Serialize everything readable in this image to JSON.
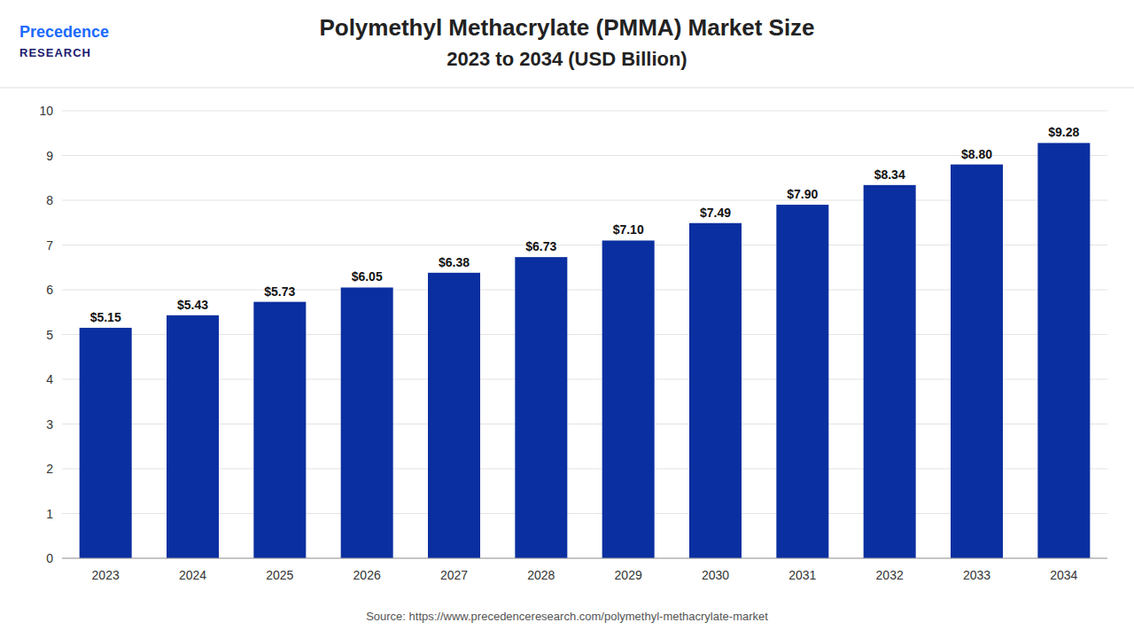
{
  "chart_data": {
    "type": "bar",
    "title": "Polymethyl Methacrylate (PMMA) Market Size",
    "subtitle": "2023 to 2034 (USD Billion)",
    "categories": [
      "2023",
      "2024",
      "2025",
      "2026",
      "2027",
      "2028",
      "2029",
      "2030",
      "2031",
      "2032",
      "2033",
      "2034"
    ],
    "values": [
      5.15,
      5.43,
      5.73,
      6.05,
      6.38,
      6.73,
      7.1,
      7.49,
      7.9,
      8.34,
      8.8,
      9.28
    ],
    "value_labels": [
      "$5.15",
      "$5.43",
      "$5.73",
      "$6.05",
      "$6.38",
      "$6.73",
      "$7.10",
      "$7.49",
      "$7.90",
      "$8.34",
      "$8.80",
      "$9.28"
    ],
    "data_labels": true,
    "color": "#0a2fa0",
    "ylim": [
      0,
      10
    ],
    "yticks": [
      0,
      1,
      2,
      3,
      4,
      5,
      6,
      7,
      8,
      9,
      10
    ],
    "grid": true,
    "annotations": [
      "Precedence",
      "RESEARCH",
      "Source: https://www.precedenceresearch.com/polymethyl-methacrylate-market"
    ]
  }
}
